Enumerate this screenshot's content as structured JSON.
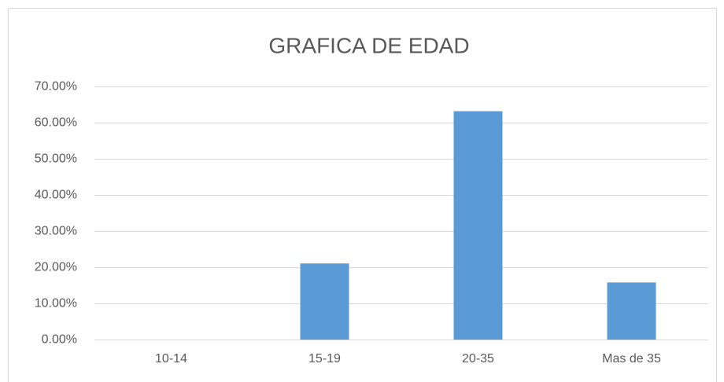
{
  "chart_data": {
    "type": "bar",
    "title": "GRAFICA DE EDAD",
    "categories": [
      "10-14",
      "15-19",
      "20-35",
      "Mas de 35"
    ],
    "values": [
      0,
      21.05,
      63.16,
      15.79
    ],
    "color": "#5b9bd5",
    "ylim": [
      0,
      70
    ],
    "yticks": [
      {
        "value": 0,
        "label": "0.00%"
      },
      {
        "value": 10,
        "label": "10.00%"
      },
      {
        "value": 20,
        "label": "20.00%"
      },
      {
        "value": 30,
        "label": "30.00%"
      },
      {
        "value": 40,
        "label": "40.00%"
      },
      {
        "value": 50,
        "label": "50.00%"
      },
      {
        "value": 60,
        "label": "60.00%"
      },
      {
        "value": 70,
        "label": "70.00%"
      }
    ],
    "grid": true
  }
}
